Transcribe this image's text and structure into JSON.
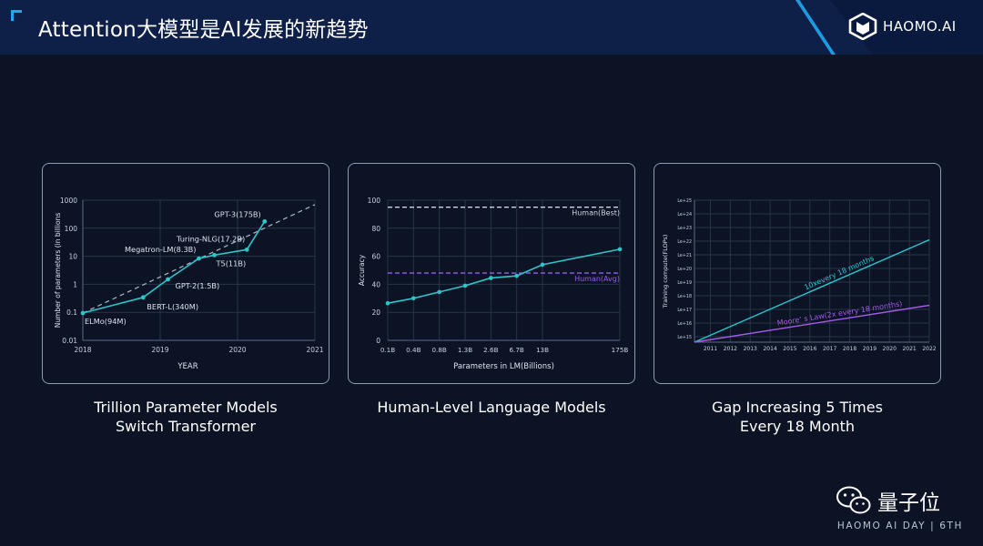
{
  "header": {
    "title": "Attention大模型是AI发展的新趋势",
    "logo_text": "HAOMO.AI"
  },
  "panels": [
    {
      "caption_lines": [
        "Trillion  Parameter Models",
        "Switch Transformer"
      ]
    },
    {
      "caption_lines": [
        "Human-Level Language Models"
      ]
    },
    {
      "caption_lines": [
        "Gap Increasing 5 Times",
        "Every 18 Month"
      ]
    }
  ],
  "chart_data": [
    {
      "type": "line",
      "xlabel": "YEAR",
      "ylabel": "Number of parameters (in billions",
      "y_scale": "log",
      "x_ticks": [
        "2018",
        "2019",
        "2020",
        "2021"
      ],
      "xlim": [
        2018,
        2021
      ],
      "y_ticks": [
        "0.01",
        "0.1",
        "1",
        "10",
        "100",
        "1000"
      ],
      "ylim": [
        0.01,
        1000
      ],
      "grid": true,
      "series": [
        {
          "points": [
            {
              "label": "ELMo(94M)",
              "x": 2018.0,
              "y": 0.094
            },
            {
              "label": "BERT-L(340M)",
              "x": 2018.78,
              "y": 0.34
            },
            {
              "label": "GPT-2(1.5B)",
              "x": 2019.1,
              "y": 1.5
            },
            {
              "label": "Megatron-LM(8.3B)",
              "x": 2019.5,
              "y": 8.3
            },
            {
              "label": "T5(11B)",
              "x": 2019.7,
              "y": 11
            },
            {
              "label": "Turing-NLG(17.2B)",
              "x": 2020.12,
              "y": 17.2
            },
            {
              "label": "GPT-3(175B)",
              "x": 2020.35,
              "y": 175
            }
          ]
        },
        {
          "style": "dashed",
          "x": [
            2018.0,
            2021.0
          ],
          "y": [
            0.094,
            700
          ]
        }
      ]
    },
    {
      "type": "line",
      "xlabel": "Parameters in LM(Billions)",
      "ylabel": "Accuracy",
      "categories": [
        "0.1B",
        "0.4B",
        "0.8B",
        "1.3B",
        "2.6B",
        "6.7B",
        "13B",
        "",
        "",
        "175B"
      ],
      "y_ticks": [
        "0",
        "20",
        "40",
        "60",
        "80",
        "100"
      ],
      "ylim": [
        0,
        100
      ],
      "grid": true,
      "series": [
        {
          "values": [
            26.5,
            30,
            34.5,
            39,
            44.5,
            46,
            54,
            null,
            null,
            65
          ]
        }
      ],
      "reference_lines": [
        {
          "label": "Human(Best)",
          "y": 95,
          "color": "#d0d6e2"
        },
        {
          "label": "Human(Avg)",
          "y": 48,
          "color": "#9b5cf0"
        }
      ]
    },
    {
      "type": "line",
      "ylabel": "Training compute(FLOPs)",
      "x_ticks": [
        "2011",
        "2012",
        "2013",
        "2014",
        "2015",
        "2016",
        "2017",
        "2018",
        "2019",
        "2020",
        "2021",
        "2022"
      ],
      "xlim": [
        2010.2,
        2022
      ],
      "y_ticks": [
        "Le+15",
        "Le+16",
        "Le+17",
        "Le+18",
        "Le+19",
        "Le+20",
        "Le+21",
        "Le+22",
        "Le+23",
        "Le+24",
        "Le+25"
      ],
      "ylim": [
        14.6,
        25
      ],
      "grid": true,
      "series": [
        {
          "name": "10xevery 18 months",
          "color": "#27c7cf",
          "x": [
            2010.2,
            2022
          ],
          "y": [
            14.6,
            22.1
          ]
        },
        {
          "name": "Moore’  s Law(2x every 18 months)",
          "color": "#a45be8",
          "x": [
            2010.2,
            2022
          ],
          "y": [
            14.6,
            17.3
          ]
        }
      ]
    }
  ],
  "footer": {
    "brand_cn": "量子位",
    "event": "HAOMO AI DAY | 6TH"
  }
}
